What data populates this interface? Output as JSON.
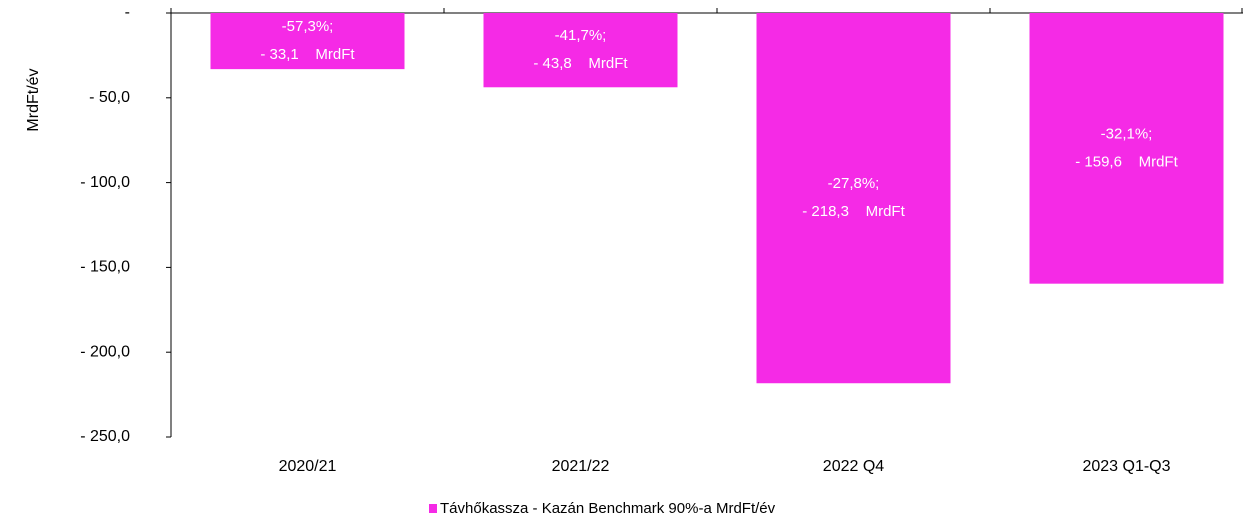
{
  "chart_data": {
    "type": "bar",
    "ylabel": "MrdFt/év",
    "categories": [
      "2020/21",
      "2021/22",
      "2022 Q4",
      "2023 Q1-Q3"
    ],
    "series": [
      {
        "name": "Távhőkassza - Kazán Benchmark 90%-a MrdFt/év",
        "color": "#f52ae6",
        "values": [
          -33.1,
          -43.8,
          -218.3,
          -159.6
        ],
        "value_labels": [
          "- 33,1    MrdFt",
          "- 43,8    MrdFt",
          "- 218,3    MrdFt",
          "- 159,6    MrdFt"
        ],
        "annotations": [
          "-57,3%;",
          "-41,7%;",
          "-27,8%;",
          "-32,1%;"
        ]
      }
    ],
    "ylim": [
      -250,
      0
    ],
    "yticks": [
      {
        "value": 0,
        "label": "-"
      },
      {
        "value": -50,
        "label": "- 50,0"
      },
      {
        "value": -100,
        "label": "- 100,0"
      },
      {
        "value": -150,
        "label": "- 150,0"
      },
      {
        "value": -200,
        "label": "- 200,0"
      },
      {
        "value": -250,
        "label": "- 250,0"
      }
    ],
    "legend": "bottom"
  }
}
